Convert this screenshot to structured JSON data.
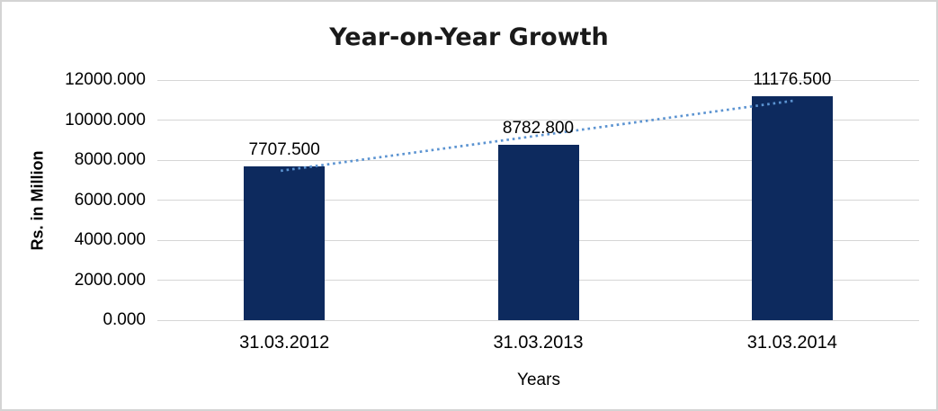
{
  "frame": {
    "background_color": "#ffffff",
    "border_color": "#d4d4d4"
  },
  "chart_data": {
    "type": "bar",
    "title": "Year-on-Year Growth",
    "xlabel": "Years",
    "ylabel": "Rs. in Million",
    "categories": [
      "31.03.2012",
      "31.03.2013",
      "31.03.2014"
    ],
    "values": [
      7707.5,
      8782.8,
      11176.5
    ],
    "data_labels": [
      "7707.500",
      "8782.800",
      "11176.500"
    ],
    "ylim": [
      0,
      12000
    ],
    "ytick_interval": 2000,
    "ytick_labels": [
      "0.000",
      "2000.000",
      "4000.000",
      "6000.000",
      "8000.000",
      "10000.000",
      "12000.000"
    ],
    "grid": "horizontal",
    "legend_position": "none",
    "bar_color": "#0d2a5e",
    "gridline_color": "#d6d6d6",
    "trendline": {
      "type": "linear",
      "style": "dotted",
      "color": "#5b93d1"
    }
  }
}
